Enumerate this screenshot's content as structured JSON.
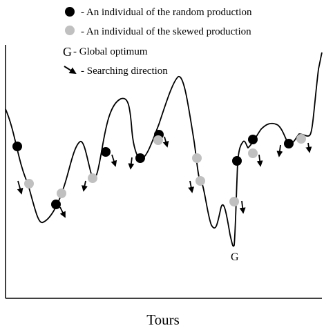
{
  "legend": {
    "random_individual": "- An individual of the random production",
    "skewed_individual": "- An individual of the skewed production",
    "global_optimum_symbol": "G",
    "global_optimum": "- Global optimum",
    "searching_direction": "- Searching direction"
  },
  "axis": {
    "xlabel": "Tours"
  },
  "optimum_marker": "G",
  "colors": {
    "random_individual": "#000000",
    "skewed_individual": "#c0c0c0",
    "curve": "#000000",
    "axis": "#000000"
  }
}
